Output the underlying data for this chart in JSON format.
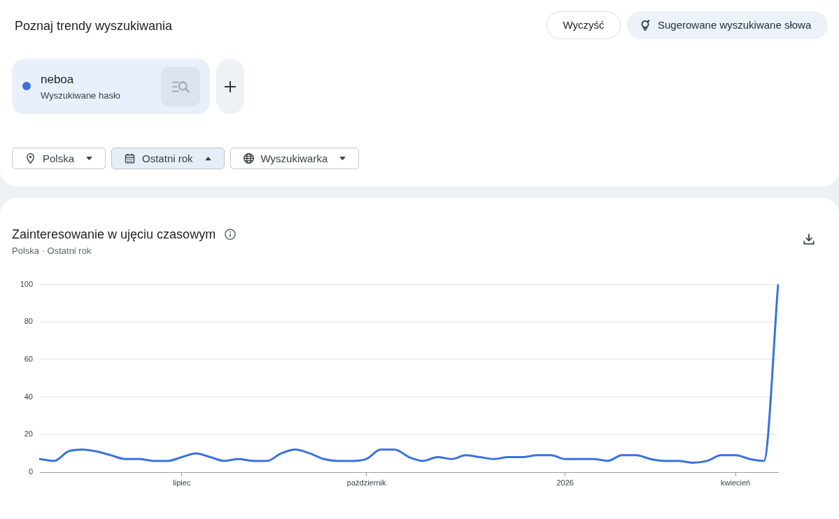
{
  "chart_data": {
    "type": "line",
    "title": "Zainteresowanie w ujęciu czasowym",
    "subtitle": "Polska · Ostatni rok",
    "categories": [
      null,
      null,
      null,
      null,
      null,
      null,
      null,
      null,
      null,
      null,
      "lipiec",
      null,
      null,
      null,
      null,
      null,
      null,
      null,
      null,
      null,
      null,
      null,
      null,
      "październik",
      null,
      null,
      null,
      null,
      null,
      null,
      null,
      null,
      null,
      null,
      null,
      null,
      null,
      "2026",
      null,
      null,
      null,
      null,
      null,
      null,
      null,
      null,
      null,
      null,
      null,
      "kwiecień",
      null,
      null,
      null
    ],
    "series": [
      {
        "name": "neboa",
        "color": "#3a72de",
        "values": [
          7,
          6,
          11,
          12,
          11,
          9,
          7,
          7,
          6,
          6,
          8,
          10,
          8,
          6,
          7,
          6,
          6,
          10,
          12,
          10,
          7,
          6,
          6,
          7,
          12,
          12,
          8,
          6,
          8,
          7,
          9,
          8,
          7,
          8,
          8,
          9,
          9,
          7,
          7,
          7,
          6,
          9,
          9,
          7,
          6,
          6,
          5,
          6,
          9,
          9,
          7,
          6,
          100
        ]
      }
    ],
    "ylim": [
      0,
      100
    ],
    "yticks": [
      0,
      20,
      40,
      60,
      80,
      100
    ],
    "grid": "y",
    "legend": "top left",
    "marker": "none",
    "annotations": [
      "Poznaj trendy wyszukiwania",
      "Wyczyść",
      "Sugerowane wyszukiwane słowa",
      "Wyszukiwane hasło",
      "Polska",
      "Ostatni rok",
      "Wyszukiwarka"
    ]
  }
}
